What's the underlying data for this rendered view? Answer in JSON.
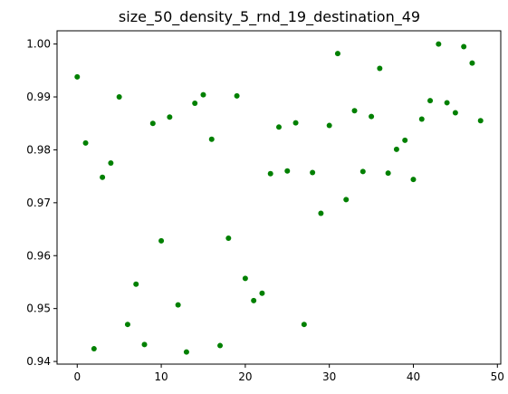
{
  "chart_data": {
    "type": "scatter",
    "title": "size_50_density_5_rnd_19_destination_49",
    "xlabel": "",
    "ylabel": "",
    "xlim": [
      -2.4,
      50.4
    ],
    "ylim": [
      0.9395,
      1.0025
    ],
    "x_ticks": [
      0,
      10,
      20,
      30,
      40,
      50
    ],
    "y_ticks": [
      0.94,
      0.95,
      0.96,
      0.97,
      0.98,
      0.99,
      1.0
    ],
    "y_tick_labels": [
      "0.94",
      "0.95",
      "0.96",
      "0.97",
      "0.98",
      "0.99",
      "1.00"
    ],
    "grid": false,
    "marker_color": "#008000",
    "x": [
      0,
      1,
      2,
      3,
      4,
      5,
      6,
      7,
      8,
      9,
      10,
      11,
      12,
      13,
      14,
      15,
      16,
      17,
      18,
      19,
      20,
      21,
      22,
      23,
      24,
      25,
      26,
      27,
      28,
      29,
      30,
      31,
      32,
      33,
      34,
      35,
      36,
      37,
      38,
      39,
      40,
      41,
      42,
      43,
      44,
      45,
      46,
      47,
      48
    ],
    "y": [
      0.9938,
      0.9813,
      0.9424,
      0.9748,
      0.9775,
      0.99,
      0.947,
      0.9546,
      0.9432,
      0.985,
      0.9628,
      0.9862,
      0.9507,
      0.9418,
      0.9888,
      0.9904,
      0.982,
      0.943,
      0.9633,
      0.9902,
      0.9557,
      0.9515,
      0.9529,
      0.9755,
      0.9843,
      0.976,
      0.9851,
      0.947,
      0.9757,
      0.968,
      0.9846,
      0.9982,
      0.9706,
      0.9874,
      0.9759,
      0.9863,
      0.9954,
      0.9756,
      0.9801,
      0.9818,
      0.9744,
      0.9858,
      0.9893,
      1.0,
      0.9889,
      0.987,
      0.9995,
      0.9964,
      0.9855
    ]
  }
}
